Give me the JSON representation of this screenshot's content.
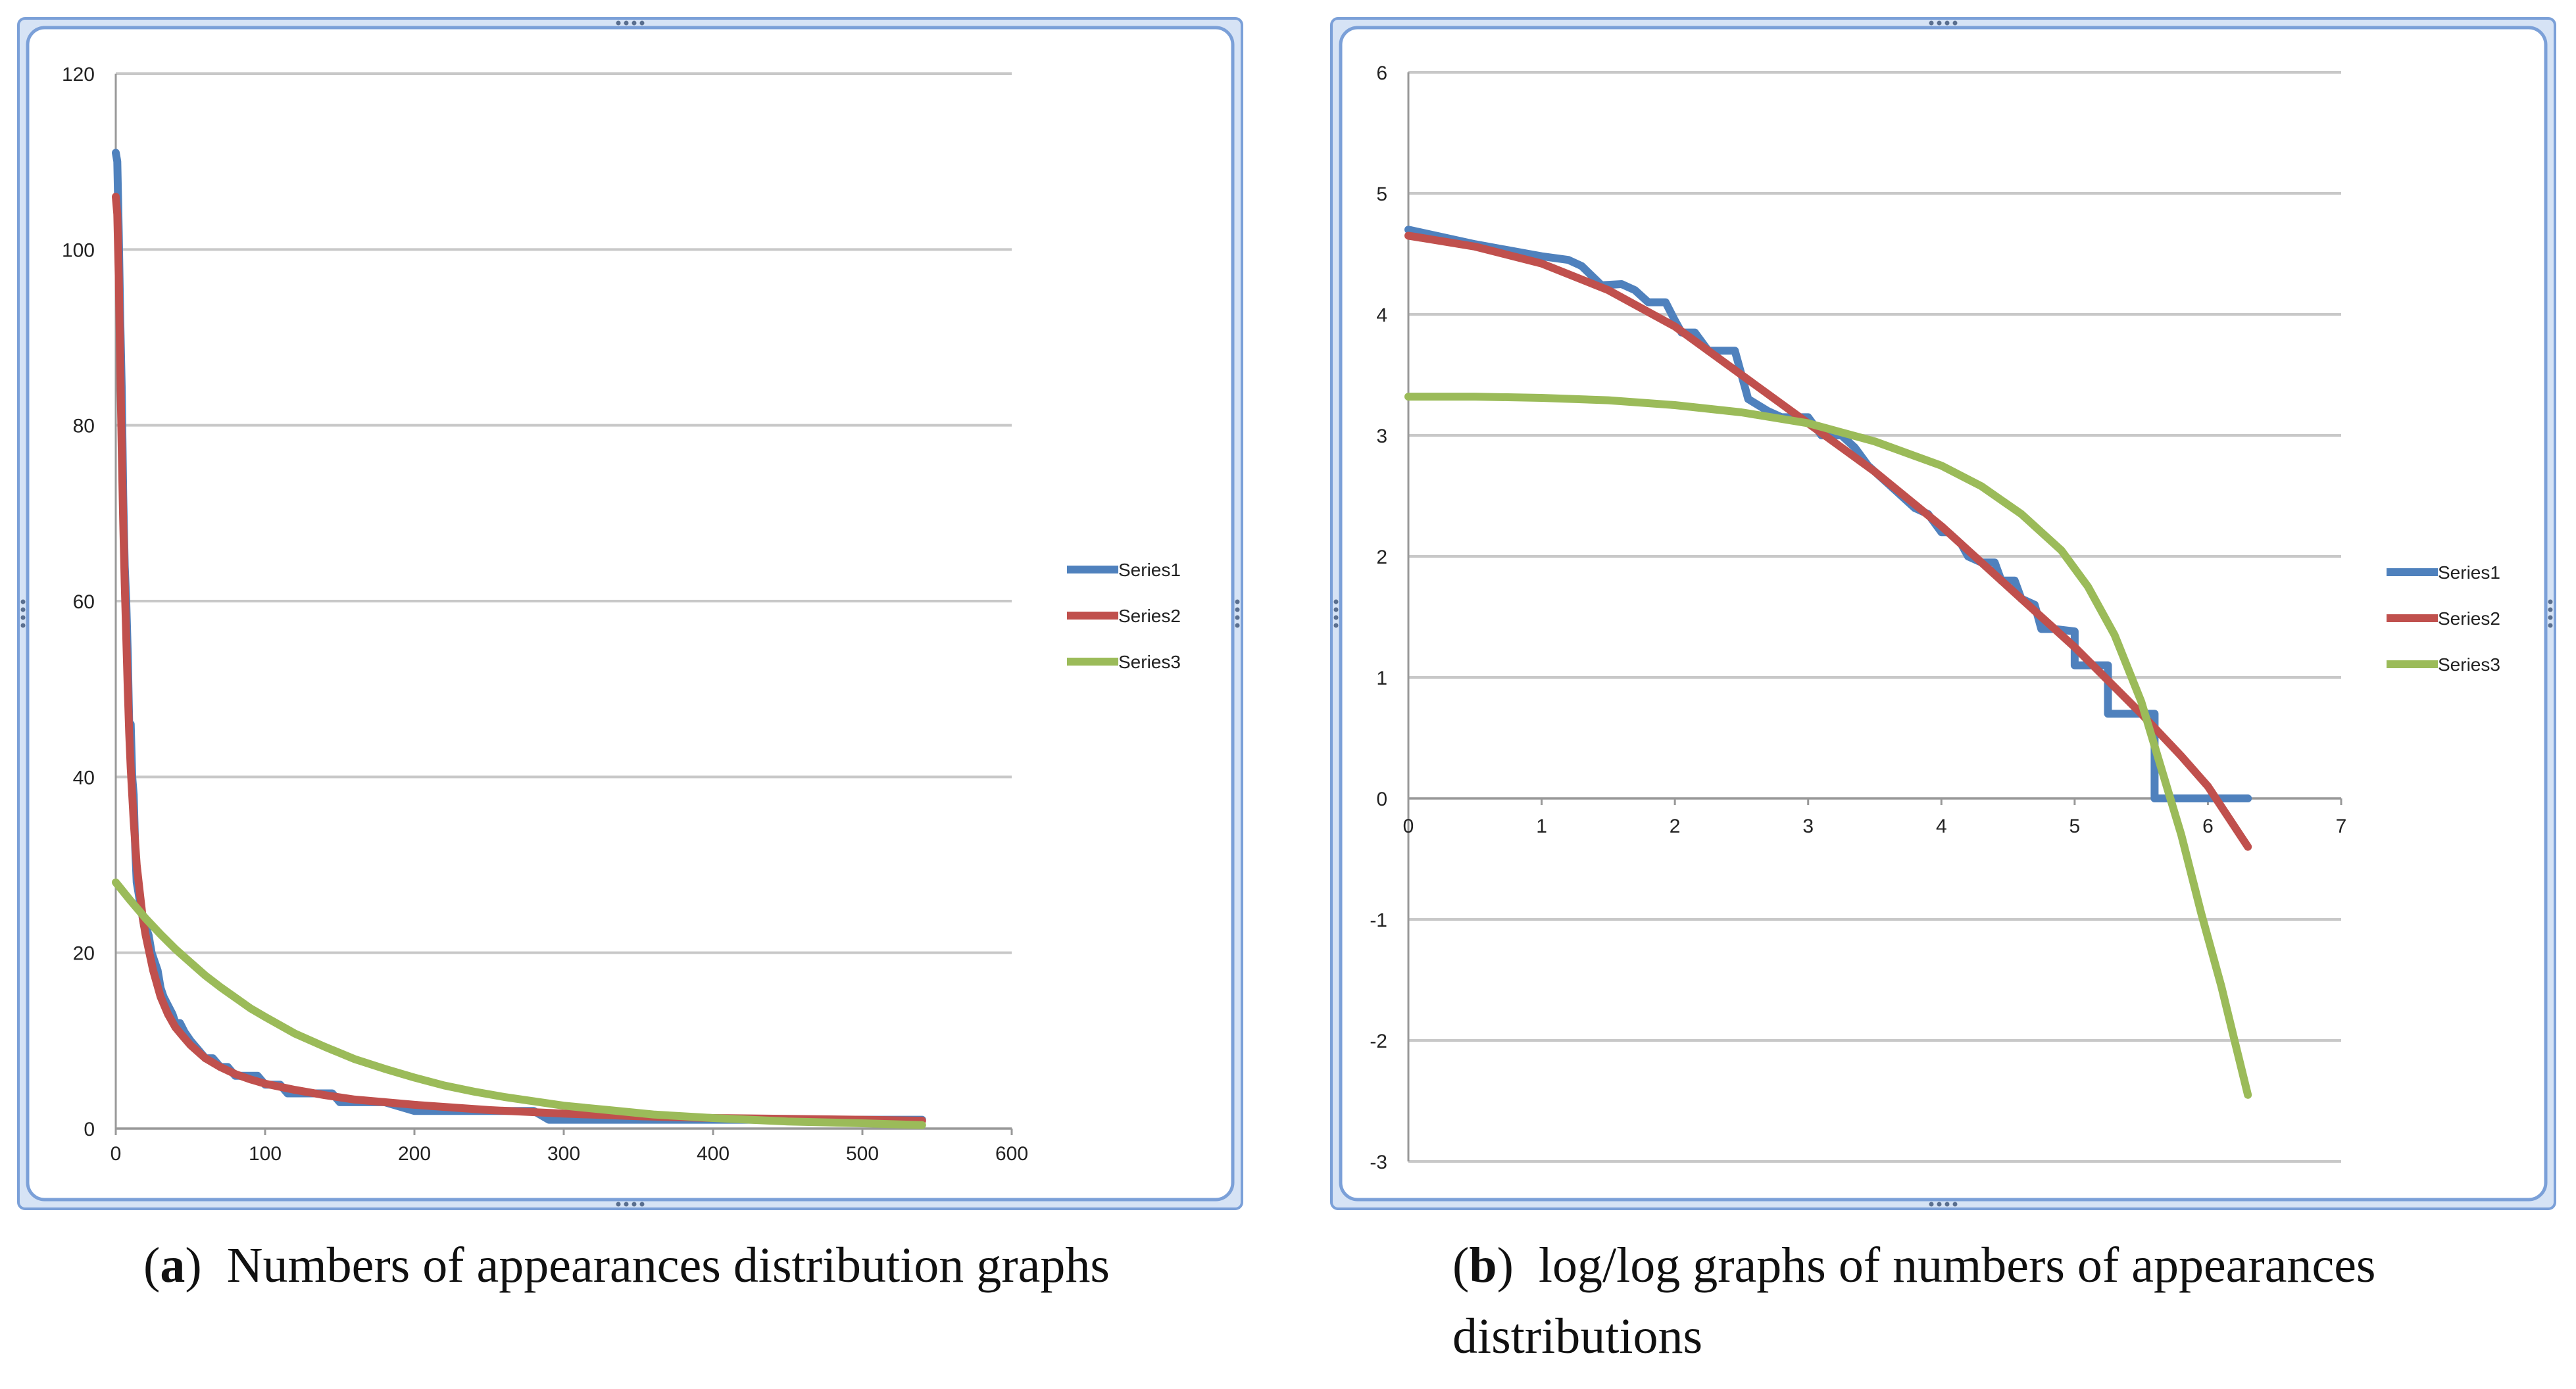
{
  "figures": [
    {
      "id": "a",
      "caption": {
        "open": "(",
        "letter": "a",
        "close": ")",
        "text": "Numbers of appearances distribution graphs"
      }
    },
    {
      "id": "b",
      "caption": {
        "open": "(",
        "letter": "b",
        "close": ")",
        "text": "log/log graphs of numbers of appearances distributions"
      }
    }
  ],
  "colors": {
    "series1": "#4F81BD",
    "series2": "#C0504D",
    "series3": "#9BBB59",
    "gridline": "#C8C8C8",
    "frame_border": "#7BA0D8",
    "frame_fill": "#D6E3F5"
  },
  "chart_data": [
    {
      "type": "line",
      "id": "a",
      "title": "",
      "xlabel": "",
      "ylabel": "",
      "xlim": [
        0,
        600
      ],
      "ylim": [
        0,
        120
      ],
      "xticks": [
        "0",
        "100",
        "200",
        "300",
        "400",
        "500",
        "600"
      ],
      "yticks": [
        "0",
        "20",
        "40",
        "60",
        "80",
        "100",
        "120"
      ],
      "grid": "horizontal",
      "legend_position": "right",
      "series": [
        {
          "name": "Series1",
          "points": [
            [
              0,
              111
            ],
            [
              1,
              110
            ],
            [
              2,
              102
            ],
            [
              3,
              92
            ],
            [
              4,
              84
            ],
            [
              5,
              72
            ],
            [
              6,
              64
            ],
            [
              7,
              60
            ],
            [
              8,
              54
            ],
            [
              9,
              46
            ],
            [
              10,
              46
            ],
            [
              11,
              40
            ],
            [
              12,
              38
            ],
            [
              13,
              32
            ],
            [
              14,
              28
            ],
            [
              15,
              27
            ],
            [
              16,
              26
            ],
            [
              17,
              25
            ],
            [
              18,
              24
            ],
            [
              19,
              23
            ],
            [
              20,
              23
            ],
            [
              22,
              22
            ],
            [
              24,
              20
            ],
            [
              26,
              19
            ],
            [
              28,
              18
            ],
            [
              30,
              16
            ],
            [
              32,
              15
            ],
            [
              35,
              14
            ],
            [
              38,
              13
            ],
            [
              40,
              12
            ],
            [
              43,
              12
            ],
            [
              46,
              11
            ],
            [
              50,
              10
            ],
            [
              55,
              9
            ],
            [
              60,
              8
            ],
            [
              65,
              8
            ],
            [
              70,
              7
            ],
            [
              75,
              7
            ],
            [
              80,
              6
            ],
            [
              90,
              6
            ],
            [
              95,
              6
            ],
            [
              100,
              5
            ],
            [
              110,
              5
            ],
            [
              115,
              4
            ],
            [
              130,
              4
            ],
            [
              145,
              4
            ],
            [
              150,
              3
            ],
            [
              180,
              3
            ],
            [
              200,
              2
            ],
            [
              240,
              2
            ],
            [
              250,
              2
            ],
            [
              280,
              2
            ],
            [
              290,
              1
            ],
            [
              540,
              1
            ]
          ]
        },
        {
          "name": "Series2",
          "points": [
            [
              0,
              106
            ],
            [
              1,
              104
            ],
            [
              2,
              97
            ],
            [
              3,
              87
            ],
            [
              4,
              77
            ],
            [
              5,
              69
            ],
            [
              6,
              62
            ],
            [
              7,
              56
            ],
            [
              8,
              50
            ],
            [
              9,
              45
            ],
            [
              10,
              41
            ],
            [
              12,
              35
            ],
            [
              14,
              30
            ],
            [
              16,
              27
            ],
            [
              18,
              24
            ],
            [
              20,
              22
            ],
            [
              25,
              18
            ],
            [
              30,
              15
            ],
            [
              35,
              13
            ],
            [
              40,
              11.5
            ],
            [
              45,
              10.5
            ],
            [
              50,
              9.5
            ],
            [
              60,
              8
            ],
            [
              70,
              7
            ],
            [
              80,
              6.2
            ],
            [
              90,
              5.6
            ],
            [
              100,
              5.1
            ],
            [
              120,
              4.4
            ],
            [
              140,
              3.8
            ],
            [
              160,
              3.3
            ],
            [
              180,
              3
            ],
            [
              200,
              2.7
            ],
            [
              250,
              2.1
            ],
            [
              300,
              1.7
            ],
            [
              350,
              1.4
            ],
            [
              400,
              1.2
            ],
            [
              450,
              1.1
            ],
            [
              500,
              1
            ],
            [
              540,
              0.9
            ]
          ]
        },
        {
          "name": "Series3",
          "points": [
            [
              0,
              28
            ],
            [
              10,
              25.9
            ],
            [
              20,
              23.9
            ],
            [
              30,
              22.1
            ],
            [
              40,
              20.4
            ],
            [
              50,
              18.9
            ],
            [
              60,
              17.4
            ],
            [
              70,
              16.1
            ],
            [
              80,
              14.9
            ],
            [
              90,
              13.7
            ],
            [
              100,
              12.7
            ],
            [
              120,
              10.8
            ],
            [
              140,
              9.3
            ],
            [
              160,
              7.9
            ],
            [
              180,
              6.8
            ],
            [
              200,
              5.8
            ],
            [
              220,
              4.9
            ],
            [
              240,
              4.2
            ],
            [
              260,
              3.6
            ],
            [
              280,
              3.1
            ],
            [
              300,
              2.6
            ],
            [
              330,
              2.1
            ],
            [
              360,
              1.6
            ],
            [
              400,
              1.2
            ],
            [
              450,
              0.8
            ],
            [
              500,
              0.6
            ],
            [
              540,
              0.4
            ]
          ]
        }
      ]
    },
    {
      "type": "line",
      "id": "b",
      "title": "",
      "xlabel": "",
      "ylabel": "",
      "xlim": [
        0,
        7
      ],
      "ylim": [
        -3,
        6
      ],
      "xticks": [
        "0",
        "1",
        "2",
        "3",
        "4",
        "5",
        "6",
        "7"
      ],
      "yticks": [
        "-3",
        "-2",
        "-1",
        "0",
        "1",
        "2",
        "3",
        "4",
        "5",
        "6"
      ],
      "grid": "horizontal",
      "legend_position": "right",
      "series": [
        {
          "name": "Series1",
          "points": [
            [
              0,
              4.7
            ],
            [
              0.5,
              4.58
            ],
            [
              1,
              4.48
            ],
            [
              1.2,
              4.45
            ],
            [
              1.3,
              4.4
            ],
            [
              1.45,
              4.24
            ],
            [
              1.6,
              4.25
            ],
            [
              1.7,
              4.2
            ],
            [
              1.8,
              4.1
            ],
            [
              1.93,
              4.1
            ],
            [
              2.0,
              3.95
            ],
            [
              2.05,
              3.85
            ],
            [
              2.15,
              3.85
            ],
            [
              2.25,
              3.7
            ],
            [
              2.45,
              3.7
            ],
            [
              2.55,
              3.3
            ],
            [
              2.7,
              3.2
            ],
            [
              2.8,
              3.15
            ],
            [
              3.0,
              3.15
            ],
            [
              3.1,
              3.0
            ],
            [
              3.25,
              3.0
            ],
            [
              3.35,
              2.9
            ],
            [
              3.45,
              2.75
            ],
            [
              3.5,
              2.7
            ],
            [
              3.6,
              2.6
            ],
            [
              3.7,
              2.5
            ],
            [
              3.8,
              2.4
            ],
            [
              3.9,
              2.35
            ],
            [
              4.0,
              2.2
            ],
            [
              4.05,
              2.2
            ],
            [
              4.15,
              2.1
            ],
            [
              4.2,
              2.0
            ],
            [
              4.3,
              1.95
            ],
            [
              4.4,
              1.95
            ],
            [
              4.45,
              1.8
            ],
            [
              4.55,
              1.8
            ],
            [
              4.6,
              1.65
            ],
            [
              4.7,
              1.6
            ],
            [
              4.75,
              1.4
            ],
            [
              4.85,
              1.4
            ],
            [
              5.0,
              1.38
            ],
            [
              5.0,
              1.1
            ],
            [
              5.25,
              1.1
            ],
            [
              5.25,
              0.7
            ],
            [
              5.6,
              0.7
            ],
            [
              5.6,
              0
            ],
            [
              6.3,
              0
            ]
          ]
        },
        {
          "name": "Series2",
          "points": [
            [
              0,
              4.65
            ],
            [
              0.5,
              4.56
            ],
            [
              1,
              4.42
            ],
            [
              1.5,
              4.2
            ],
            [
              2.0,
              3.9
            ],
            [
              2.5,
              3.5
            ],
            [
              3.0,
              3.1
            ],
            [
              3.5,
              2.7
            ],
            [
              4.0,
              2.25
            ],
            [
              4.5,
              1.75
            ],
            [
              5.0,
              1.25
            ],
            [
              5.5,
              0.7
            ],
            [
              5.8,
              0.35
            ],
            [
              6.0,
              0.1
            ],
            [
              6.15,
              -0.15
            ],
            [
              6.3,
              -0.4
            ]
          ]
        },
        {
          "name": "Series3",
          "points": [
            [
              0,
              3.32
            ],
            [
              0.5,
              3.32
            ],
            [
              1.0,
              3.31
            ],
            [
              1.5,
              3.29
            ],
            [
              2.0,
              3.25
            ],
            [
              2.5,
              3.19
            ],
            [
              3.0,
              3.1
            ],
            [
              3.5,
              2.95
            ],
            [
              4.0,
              2.75
            ],
            [
              4.3,
              2.58
            ],
            [
              4.6,
              2.35
            ],
            [
              4.9,
              2.05
            ],
            [
              5.1,
              1.75
            ],
            [
              5.3,
              1.35
            ],
            [
              5.5,
              0.8
            ],
            [
              5.65,
              0.25
            ],
            [
              5.8,
              -0.3
            ],
            [
              5.95,
              -0.95
            ],
            [
              6.1,
              -1.55
            ],
            [
              6.2,
              -2.0
            ],
            [
              6.3,
              -2.45
            ]
          ]
        }
      ]
    }
  ]
}
